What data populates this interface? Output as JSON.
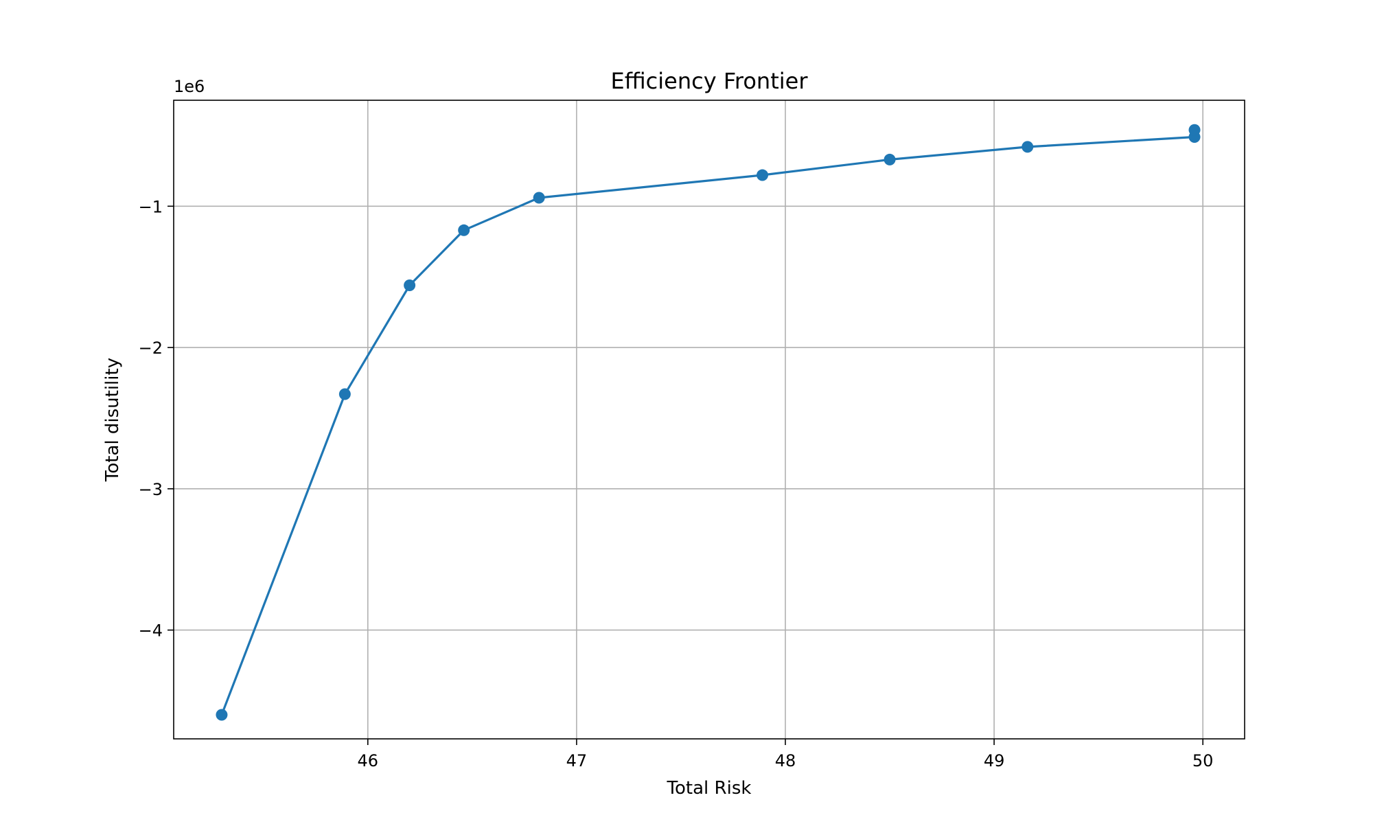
{
  "chart_data": {
    "type": "line",
    "title": "Efficiency Frontier",
    "xlabel": "Total Risk",
    "ylabel": "Total disutility",
    "y_offset_label": "1e6",
    "y_multiplier": 1000000,
    "xlim": [
      45.07,
      50.2
    ],
    "ylim": [
      -4.77,
      -0.25
    ],
    "xticks": [
      46,
      47,
      48,
      49,
      50
    ],
    "xtick_labels": [
      "46",
      "47",
      "48",
      "49",
      "50"
    ],
    "yticks": [
      -1,
      -2,
      -3,
      -4
    ],
    "ytick_labels": [
      "−1",
      "−2",
      "−3",
      "−4"
    ],
    "grid": true,
    "legend": "none",
    "colors": {
      "series": "#1f77b4",
      "grid": "#b0b0b0",
      "axes": "#000000"
    },
    "series": [
      {
        "marker": "circle",
        "points": [
          {
            "x": 45.3,
            "y": -4.6
          },
          {
            "x": 45.89,
            "y": -2.33
          },
          {
            "x": 46.2,
            "y": -1.56
          },
          {
            "x": 46.46,
            "y": -1.17
          },
          {
            "x": 46.82,
            "y": -0.94
          },
          {
            "x": 47.89,
            "y": -0.78
          },
          {
            "x": 48.5,
            "y": -0.67
          },
          {
            "x": 49.16,
            "y": -0.58
          },
          {
            "x": 49.96,
            "y": -0.51
          },
          {
            "x": 49.96,
            "y": -0.46
          }
        ]
      }
    ]
  }
}
